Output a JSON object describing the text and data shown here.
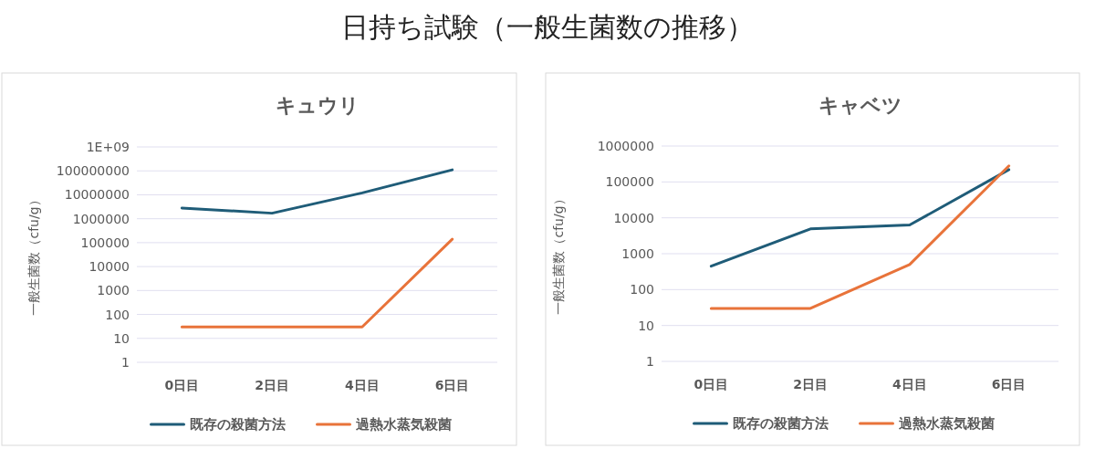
{
  "chart_data": [
    {
      "type": "line",
      "title": "キュウリ",
      "ylabel": "一般生菌数（cfu/g）",
      "annotations": [
        "日持ち試験（一般生菌数の推移）"
      ],
      "categories": [
        "0日目",
        "2日目",
        "4日目",
        "6日目"
      ],
      "series": [
        {
          "name": "既存の殺菌方法",
          "color": "#1f5c78",
          "values": [
            2800000,
            1700000,
            12000000,
            110000000
          ]
        },
        {
          "name": "過熱水蒸気殺菌",
          "color": "#e8733a",
          "values": [
            30,
            30,
            30,
            140000
          ]
        }
      ],
      "log": "y",
      "ylim": [
        1,
        1000000000
      ],
      "yticks": [
        1,
        10,
        100,
        1000,
        10000,
        100000,
        1000000,
        10000000,
        100000000,
        {
          "value": 1000000000,
          "label": "1E+09"
        }
      ],
      "grid": "y",
      "legend": "bottom",
      "marker": "none",
      "line_style": "solid"
    },
    {
      "type": "line",
      "title": "キャベツ",
      "ylabel": "一般生菌数（cfu/g）",
      "categories": [
        "0日目",
        "2日目",
        "4日目",
        "6日目"
      ],
      "series": [
        {
          "name": "既存の殺菌方法",
          "color": "#1f5c78",
          "values": [
            450,
            4900,
            6300,
            220000
          ]
        },
        {
          "name": "過熱水蒸気殺菌",
          "color": "#e8733a",
          "values": [
            30,
            30,
            500,
            280000
          ]
        }
      ],
      "log": "y",
      "ylim": [
        1,
        1000000
      ],
      "yticks": [
        1,
        10,
        100,
        1000,
        10000,
        100000,
        1000000
      ],
      "grid": "y",
      "legend": "bottom",
      "marker": "none",
      "line_style": "solid"
    }
  ]
}
